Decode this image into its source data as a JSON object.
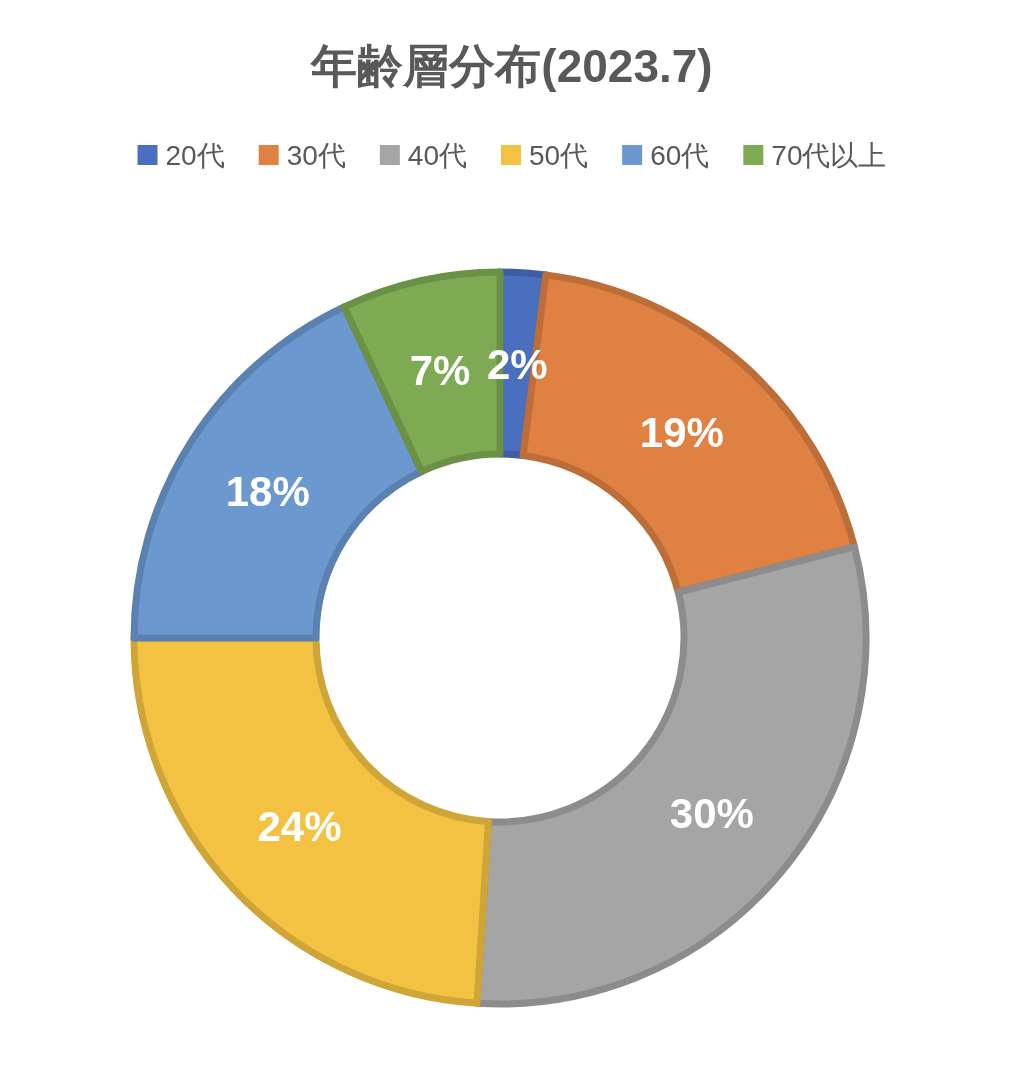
{
  "chart_data": {
    "type": "donut",
    "title": "年齢層分布(2023.7)",
    "categories": [
      "20代",
      "30代",
      "40代",
      "50代",
      "60代",
      "70代以上"
    ],
    "values": [
      2,
      19,
      30,
      24,
      18,
      7
    ],
    "value_labels": [
      "2%",
      "19%",
      "30%",
      "24%",
      "18%",
      "7%"
    ],
    "colors": [
      "#4a6fbf",
      "#de8142",
      "#a5a5a5",
      "#f4c242",
      "#6a98cf",
      "#7daa52"
    ],
    "legend": "top"
  }
}
